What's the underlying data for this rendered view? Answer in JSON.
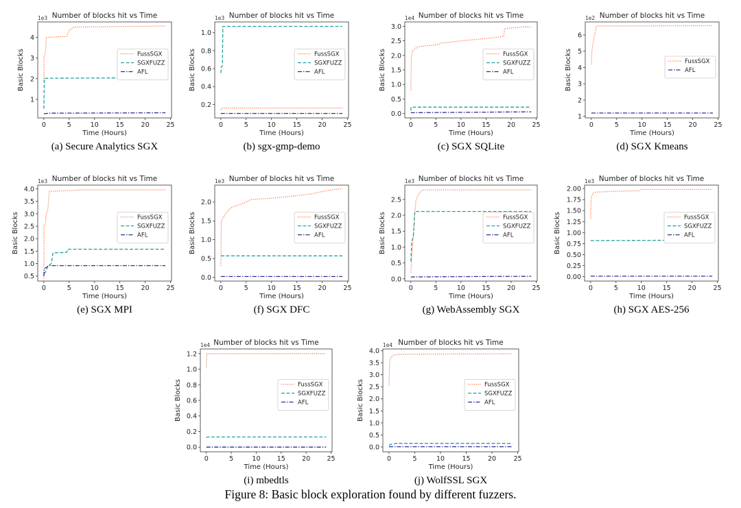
{
  "figure_caption": "Figure 8: Basic block exploration found by different fuzzers.",
  "series_style": {
    "FussSGX": {
      "color": "#ff7f50",
      "dash": "dotted"
    },
    "SGXFUZZ": {
      "color": "#20a0a0",
      "dash": "dashed"
    },
    "AFL": {
      "color": "#2a2a9a",
      "dash": "dashdot"
    }
  },
  "chart_data": [
    {
      "type": "line",
      "caption": "(a) Secure Analytics SGX",
      "title": "Number of blocks hit vs Time",
      "xlabel": "Time (Hours)",
      "ylabel": "Basic Blocks",
      "y_multiplier": "1e3",
      "xlim": [
        -1.2,
        25.2
      ],
      "ylim": [
        0.1,
        4.75
      ],
      "xticks": [
        "0",
        "5",
        "10",
        "15",
        "20",
        "25"
      ],
      "yticks": [
        "1",
        "2",
        "3",
        "4"
      ],
      "legend": "center-right",
      "grid": false,
      "series": [
        {
          "name": "FussSGX",
          "x": [
            0,
            0.05,
            0.3,
            0.5,
            4.5,
            5,
            6,
            24
          ],
          "y": [
            1.8,
            3.1,
            3.2,
            4.0,
            4.05,
            4.35,
            4.5,
            4.55
          ]
        },
        {
          "name": "SGXFUZZ",
          "x": [
            0,
            0.1,
            24
          ],
          "y": [
            0.55,
            2.02,
            2.05
          ]
        },
        {
          "name": "AFL",
          "x": [
            0,
            1,
            24
          ],
          "y": [
            0.3,
            0.33,
            0.35
          ]
        }
      ]
    },
    {
      "type": "line",
      "caption": "(b) sgx-gmp-demo",
      "title": "Number of blocks hit vs Time",
      "xlabel": "Time (Hours)",
      "ylabel": "Basic Blocks",
      "y_multiplier": "1e3",
      "xlim": [
        -1.2,
        25.2
      ],
      "ylim": [
        0.05,
        1.12
      ],
      "xticks": [
        "0",
        "5",
        "10",
        "15",
        "20",
        "25"
      ],
      "yticks": [
        "0.2",
        "0.4",
        "0.6",
        "0.8",
        "1.0"
      ],
      "legend": "center-right",
      "grid": false,
      "series": [
        {
          "name": "FussSGX",
          "x": [
            0,
            0.3,
            24
          ],
          "y": [
            0.14,
            0.16,
            0.16
          ]
        },
        {
          "name": "SGXFUZZ",
          "x": [
            0,
            0.1,
            0.3,
            0.4,
            24
          ],
          "y": [
            0.55,
            0.62,
            0.63,
            1.07,
            1.07
          ]
        },
        {
          "name": "AFL",
          "x": [
            0,
            24
          ],
          "y": [
            0.1,
            0.1
          ]
        }
      ]
    },
    {
      "type": "line",
      "caption": "(c) SGX SQLite",
      "title": "Number of blocks hit vs Time",
      "xlabel": "Time (Hours)",
      "ylabel": "Basic Blocks",
      "y_multiplier": "1e4",
      "xlim": [
        -1.2,
        25.2
      ],
      "ylim": [
        -0.15,
        3.15
      ],
      "xticks": [
        "0",
        "5",
        "10",
        "15",
        "20",
        "25"
      ],
      "yticks": [
        "0.0",
        "0.5",
        "1.0",
        "1.5",
        "2.0",
        "2.5",
        "3.0"
      ],
      "legend": "center-right",
      "grid": false,
      "series": [
        {
          "name": "FussSGX",
          "x": [
            0,
            0.1,
            0.3,
            1,
            1.5,
            3,
            5.5,
            6,
            9,
            10,
            13,
            15,
            18.5,
            18.7,
            22.5,
            24
          ],
          "y": [
            0.8,
            1.9,
            2.15,
            2.25,
            2.3,
            2.33,
            2.37,
            2.42,
            2.48,
            2.5,
            2.55,
            2.58,
            2.65,
            2.92,
            2.98,
            2.98
          ]
        },
        {
          "name": "SGXFUZZ",
          "x": [
            0,
            0.05,
            24
          ],
          "y": [
            0.1,
            0.22,
            0.22
          ]
        },
        {
          "name": "AFL",
          "x": [
            0,
            24
          ],
          "y": [
            0.03,
            0.06
          ]
        }
      ]
    },
    {
      "type": "line",
      "caption": "(d) SGX Kmeans",
      "title": "Number of blocks hit vs Time",
      "xlabel": "Time (Hours)",
      "ylabel": "Basic Blocks",
      "y_multiplier": "1e2",
      "xlim": [
        -1.2,
        25.2
      ],
      "ylim": [
        0.9,
        6.8
      ],
      "xticks": [
        "0",
        "5",
        "10",
        "15",
        "20",
        "25"
      ],
      "yticks": [
        "1",
        "2",
        "3",
        "4",
        "5",
        "6"
      ],
      "legend": "center-right",
      "grid": false,
      "series": [
        {
          "name": "FussSGX",
          "x": [
            0,
            0.1,
            0.5,
            1,
            24
          ],
          "y": [
            4.2,
            5.0,
            5.8,
            6.55,
            6.57
          ]
        },
        {
          "name": "AFL",
          "x": [
            0,
            24
          ],
          "y": [
            1.2,
            1.2
          ]
        }
      ]
    },
    {
      "type": "line",
      "caption": "(e) SGX MPI",
      "title": "Number of blocks hit vs Time",
      "xlabel": "Time (Hours)",
      "ylabel": "Basic Blocks",
      "y_multiplier": "1e3",
      "xlim": [
        -1.2,
        25.2
      ],
      "ylim": [
        0.3,
        4.15
      ],
      "xticks": [
        "0",
        "5",
        "10",
        "15",
        "20",
        "25"
      ],
      "yticks": [
        "0.5",
        "1.0",
        "1.5",
        "2.0",
        "2.5",
        "3.0",
        "3.5",
        "4.0"
      ],
      "legend": "center-right",
      "grid": false,
      "series": [
        {
          "name": "FussSGX",
          "x": [
            0,
            0.05,
            0.3,
            0.5,
            0.8,
            1.1,
            5,
            8,
            24
          ],
          "y": [
            0.4,
            2.5,
            2.6,
            3.0,
            3.2,
            3.9,
            3.93,
            3.96,
            3.96
          ]
        },
        {
          "name": "SGXFUZZ",
          "x": [
            0,
            0.3,
            0.5,
            0.8,
            1.5,
            1.8,
            4.5,
            4.7,
            24
          ],
          "y": [
            0.6,
            0.65,
            0.75,
            0.9,
            1.0,
            1.43,
            1.45,
            1.58,
            1.58
          ]
        },
        {
          "name": "AFL",
          "x": [
            0,
            0.1,
            0.5,
            1,
            24
          ],
          "y": [
            0.5,
            0.8,
            0.85,
            0.92,
            0.92
          ]
        }
      ]
    },
    {
      "type": "line",
      "caption": "(f) SGX DFC",
      "title": "Number of blocks hit vs Time",
      "xlabel": "Time (Hours)",
      "ylabel": "Basic Blocks",
      "y_multiplier": "1e3",
      "xlim": [
        -1.2,
        25.2
      ],
      "ylim": [
        -0.1,
        2.45
      ],
      "xticks": [
        "0",
        "5",
        "10",
        "15",
        "20",
        "25"
      ],
      "yticks": [
        "0.0",
        "0.5",
        "1.0",
        "1.5",
        "2.0"
      ],
      "legend": "center-right",
      "grid": false,
      "series": [
        {
          "name": "FussSGX",
          "x": [
            0,
            0.1,
            0.5,
            1,
            2,
            3,
            4,
            5,
            6,
            10,
            15,
            18,
            20,
            22,
            24
          ],
          "y": [
            0.3,
            1.5,
            1.6,
            1.7,
            1.85,
            1.9,
            1.95,
            2.0,
            2.07,
            2.1,
            2.17,
            2.22,
            2.28,
            2.33,
            2.35
          ]
        },
        {
          "name": "SGXFUZZ",
          "x": [
            0,
            24
          ],
          "y": [
            0.57,
            0.57
          ]
        },
        {
          "name": "AFL",
          "x": [
            0,
            24
          ],
          "y": [
            0.02,
            0.02
          ]
        }
      ]
    },
    {
      "type": "line",
      "caption": "(g) WebAssembly SGX",
      "title": "Number of blocks hit vs Time",
      "xlabel": "Time (Hours)",
      "ylabel": "Basic Blocks",
      "y_multiplier": "1e3",
      "xlim": [
        -1.2,
        25.2
      ],
      "ylim": [
        -0.07,
        2.95
      ],
      "xticks": [
        "0",
        "5",
        "10",
        "15",
        "20",
        "25"
      ],
      "yticks": [
        "0.0",
        "0.5",
        "1.0",
        "1.5",
        "2.0",
        "2.5"
      ],
      "legend": "center-right",
      "grid": false,
      "series": [
        {
          "name": "FussSGX",
          "x": [
            0,
            0.3,
            0.6,
            0.8,
            1,
            1.5,
            2.3,
            24
          ],
          "y": [
            0.2,
            1.0,
            1.6,
            2.1,
            2.45,
            2.65,
            2.8,
            2.8
          ]
        },
        {
          "name": "SGXFUZZ",
          "x": [
            0,
            0.2,
            0.5,
            0.8,
            24
          ],
          "y": [
            0.55,
            1.2,
            1.3,
            2.12,
            2.12
          ]
        },
        {
          "name": "AFL",
          "x": [
            0,
            10,
            24
          ],
          "y": [
            0.06,
            0.07,
            0.08
          ]
        }
      ]
    },
    {
      "type": "line",
      "caption": "(h) SGX AES-256",
      "title": "Number of blocks hit vs Time",
      "xlabel": "Time (Hours)",
      "ylabel": "Basic Blocks",
      "y_multiplier": "1e3",
      "xlim": [
        -1.2,
        25.2
      ],
      "ylim": [
        -0.1,
        2.08
      ],
      "xticks": [
        "0",
        "5",
        "10",
        "15",
        "20",
        "25"
      ],
      "yticks": [
        "0.00",
        "0.25",
        "0.50",
        "0.75",
        "1.00",
        "1.25",
        "1.50",
        "1.75",
        "2.00"
      ],
      "legend": "center-right",
      "grid": false,
      "series": [
        {
          "name": "FussSGX",
          "x": [
            0,
            0.1,
            0.5,
            1,
            5,
            9.5,
            10,
            24
          ],
          "y": [
            1.32,
            1.8,
            1.9,
            1.92,
            1.94,
            1.95,
            1.98,
            1.98
          ]
        },
        {
          "name": "SGXFUZZ",
          "x": [
            0,
            24
          ],
          "y": [
            0.82,
            0.83
          ]
        },
        {
          "name": "AFL",
          "x": [
            0,
            24
          ],
          "y": [
            0.01,
            0.01
          ]
        }
      ]
    },
    {
      "type": "line",
      "caption": "(i) mbedtls",
      "title": "Number of blocks hit vs Time",
      "xlabel": "Time (Hours)",
      "ylabel": "Basic Blocks",
      "y_multiplier": "1e4",
      "xlim": [
        -1.2,
        25.2
      ],
      "ylim": [
        -0.06,
        1.26
      ],
      "xticks": [
        "0",
        "5",
        "10",
        "15",
        "20",
        "25"
      ],
      "yticks": [
        "0.0",
        "0.2",
        "0.4",
        "0.6",
        "0.8",
        "1.0",
        "1.2"
      ],
      "legend": "center-right",
      "grid": false,
      "series": [
        {
          "name": "FussSGX",
          "x": [
            0,
            0.1,
            24
          ],
          "y": [
            1.02,
            1.2,
            1.2
          ]
        },
        {
          "name": "SGXFUZZ",
          "x": [
            0,
            0.2,
            24
          ],
          "y": [
            0.12,
            0.13,
            0.13
          ]
        },
        {
          "name": "AFL",
          "x": [
            0,
            24
          ],
          "y": [
            0.0,
            0.0
          ]
        }
      ]
    },
    {
      "type": "line",
      "caption": "(j) WolfSSL SGX",
      "title": "Number of blocks hit vs Time",
      "xlabel": "Time (Hours)",
      "ylabel": "Basic Blocks",
      "y_multiplier": "1e4",
      "xlim": [
        -1.2,
        25.2
      ],
      "ylim": [
        -0.2,
        4.07
      ],
      "xticks": [
        "0",
        "5",
        "10",
        "15",
        "20",
        "25"
      ],
      "yticks": [
        "0.0",
        "0.5",
        "1.0",
        "1.5",
        "2.0",
        "2.5",
        "3.0",
        "3.5",
        "4.0"
      ],
      "legend": "center-right",
      "grid": false,
      "series": [
        {
          "name": "FussSGX",
          "x": [
            0,
            0.1,
            0.4,
            1,
            2,
            24
          ],
          "y": [
            2.55,
            3.5,
            3.75,
            3.82,
            3.85,
            3.87
          ]
        },
        {
          "name": "SGXFUZZ",
          "x": [
            0,
            0.5,
            1.5,
            24
          ],
          "y": [
            0.07,
            0.12,
            0.15,
            0.15
          ]
        },
        {
          "name": "AFL",
          "x": [
            0,
            24
          ],
          "y": [
            0.01,
            0.01
          ]
        }
      ]
    }
  ]
}
